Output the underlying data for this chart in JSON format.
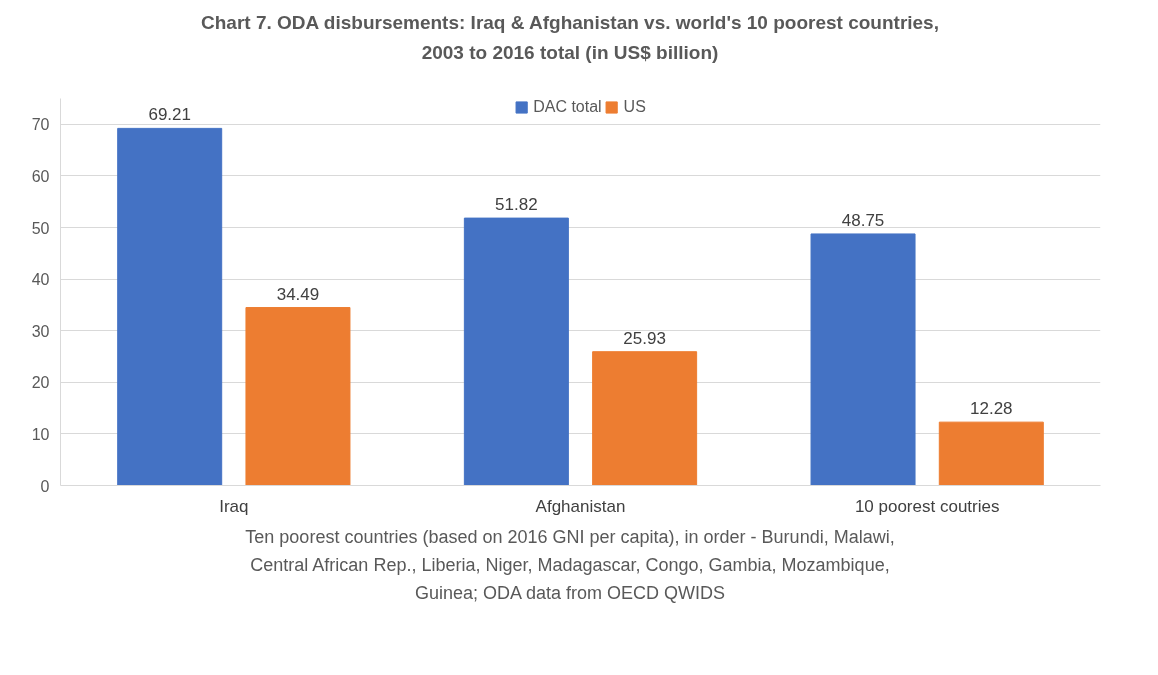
{
  "chart_data": {
    "type": "bar",
    "title": "Chart 7. ODA disbursements: Iraq & Afghanistan vs. world's 10 poorest countries, 2003 to 2016 total (in US$ billion)",
    "categories": [
      "Iraq",
      "Afghanistan",
      "10 poorest coutries"
    ],
    "series": [
      {
        "name": "DAC total",
        "color": "#4472c4",
        "values": [
          69.21,
          51.82,
          48.75
        ]
      },
      {
        "name": "US",
        "color": "#ed7d31",
        "values": [
          34.49,
          25.93,
          12.28
        ]
      }
    ],
    "ylim": [
      0,
      75
    ],
    "yticks": [
      0,
      10,
      20,
      30,
      40,
      50,
      60,
      70
    ],
    "grid": "y",
    "legend": "top",
    "data_labels": true,
    "annotations": [
      "Ten poorest countries (based on 2016 GNI per capita), in order - Burundi, Malawi, Central African Rep., Liberia, Niger, Madagascar, Congo, Gambia, Mozambique, Guinea; ODA data from OECD QWIDS"
    ]
  }
}
